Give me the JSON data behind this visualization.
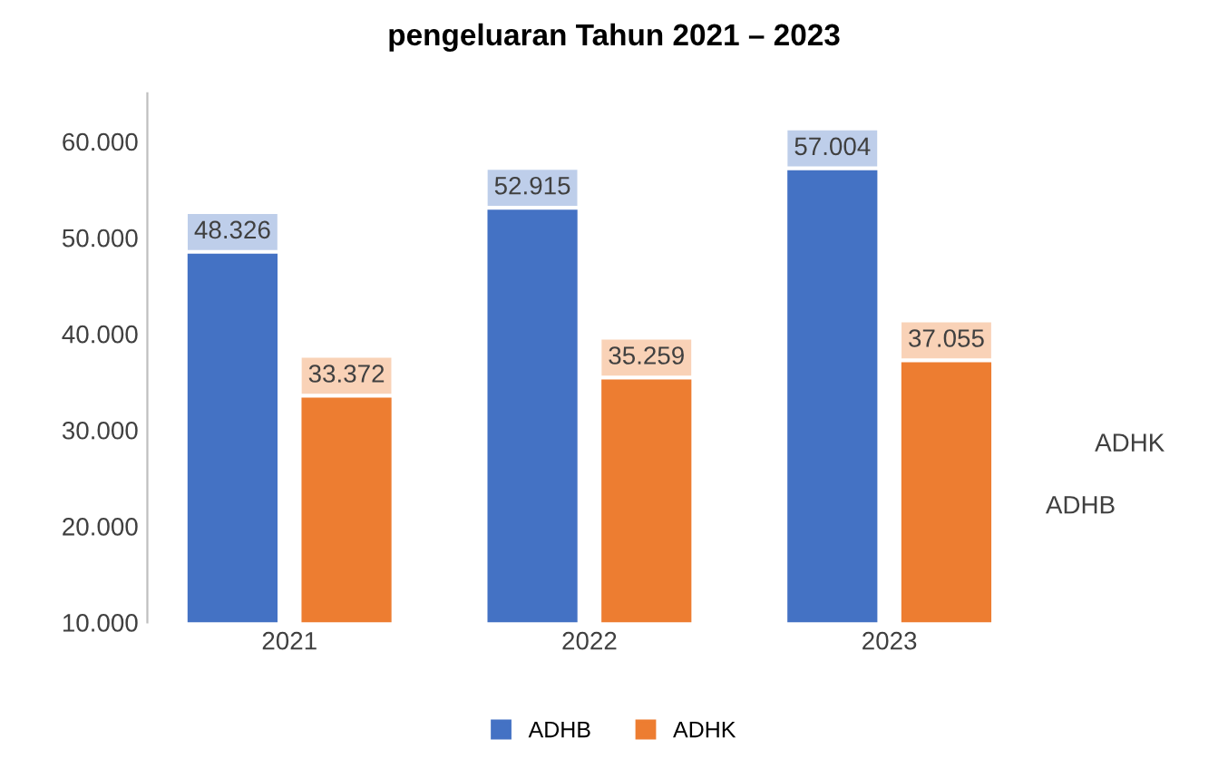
{
  "chart_data": {
    "type": "bar",
    "title": "pengeluaran Tahun 2021 – 2023",
    "categories": [
      "2021",
      "2022",
      "2023"
    ],
    "series": [
      {
        "name": "ADHB",
        "color": "#4472c4",
        "values": [
          48326,
          52915,
          57004
        ],
        "value_labels": [
          "48.326",
          "52.915",
          "57.004"
        ]
      },
      {
        "name": "ADHK",
        "color": "#ed7d31",
        "values": [
          33372,
          35259,
          37055
        ],
        "value_labels": [
          "33.372",
          "35.259",
          "37.055"
        ]
      }
    ],
    "ylim": [
      10000,
      65000
    ],
    "yticks": [
      {
        "value": 10000,
        "label": "10.000"
      },
      {
        "value": 20000,
        "label": "20.000"
      },
      {
        "value": 30000,
        "label": "30.000"
      },
      {
        "value": 40000,
        "label": "40.000"
      },
      {
        "value": 50000,
        "label": "50.000"
      },
      {
        "value": 60000,
        "label": "60.000"
      }
    ],
    "annotations": [
      "ADHK",
      "ADHB"
    ],
    "legend": "bottom",
    "grid": false
  }
}
